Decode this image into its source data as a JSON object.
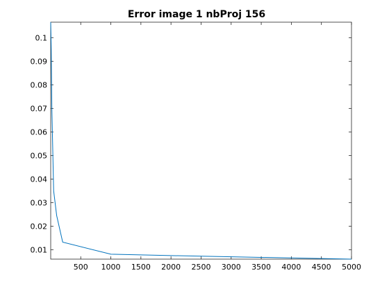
{
  "chart_data": {
    "type": "line",
    "title": "Error image 1 nbProj 156",
    "xlabel": "",
    "ylabel": "",
    "xlim": [
      1,
      5000
    ],
    "ylim": [
      0.006,
      0.1066
    ],
    "x_ticks": [
      500,
      1000,
      1500,
      2000,
      2500,
      3000,
      3500,
      4000,
      4500,
      5000
    ],
    "x_tick_labels": [
      "500",
      "1000",
      "1500",
      "2000",
      "2500",
      "3000",
      "3500",
      "4000",
      "4500",
      "5000"
    ],
    "y_ticks": [
      0.01,
      0.02,
      0.03,
      0.04,
      0.05,
      0.06,
      0.07,
      0.08,
      0.09,
      0.1
    ],
    "y_tick_labels": [
      "0.01",
      "0.02",
      "0.03",
      "0.04",
      "0.05",
      "0.06",
      "0.07",
      "0.08",
      "0.09",
      "0.1"
    ],
    "grid": false,
    "series": [
      {
        "color": "#0072bd",
        "x": [
          1,
          10,
          20,
          50,
          100,
          200,
          1000,
          2000,
          5000
        ],
        "y": [
          0.1066,
          0.095,
          0.07,
          0.035,
          0.0245,
          0.0132,
          0.0081,
          0.0075,
          0.006
        ]
      }
    ]
  }
}
